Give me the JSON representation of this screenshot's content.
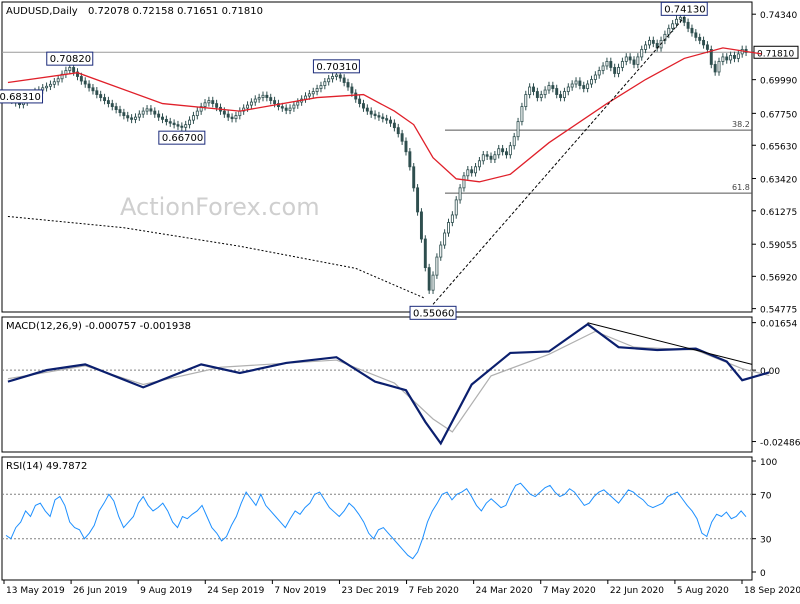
{
  "header": {
    "symbol": "AUDUSD,Daily",
    "ohlc": "0.72078 0.72158 0.71651 0.71810"
  },
  "watermark": "ActionForex.com",
  "colors": {
    "candle": "#2f4f4f",
    "sma": "#e0202a",
    "long_ma": "#000000",
    "macd": "#0b1f6e",
    "signal": "#b0b0b0",
    "rsi": "#1e90ff",
    "label_border": "#1a2a7a",
    "axis": "#000000",
    "grid": "#808080"
  },
  "chart_data": [
    {
      "type": "candlestick",
      "name": "price",
      "title": "AUDUSD,Daily",
      "y_ticks": [
        "0.74340",
        "0.71810",
        "0.69990",
        "0.67750",
        "0.65630",
        "0.63420",
        "0.61275",
        "0.59055",
        "0.56920",
        "0.54775"
      ],
      "y_tick_values": [
        0.7434,
        0.7181,
        0.6999,
        0.6775,
        0.6563,
        0.6342,
        0.61275,
        0.59055,
        0.5692,
        0.54775
      ],
      "x_ticks": [
        "13 May 2019",
        "26 Jun 2019",
        "9 Aug 2019",
        "24 Sep 2019",
        "7 Nov 2019",
        "23 Dec 2019",
        "7 Feb 2020",
        "24 Mar 2020",
        "7 May 2020",
        "22 Jun 2020",
        "5 Aug 2020",
        "18 Sep 2020"
      ],
      "ylim": [
        0.5455,
        0.7515
      ],
      "current_price": 0.7181,
      "current_price_label": "0.71810",
      "annotations": [
        {
          "label": "0.68310",
          "value": 0.6831,
          "index": 3
        },
        {
          "label": "0.70820",
          "value": 0.7082,
          "index": 16
        },
        {
          "label": "0.66700",
          "value": 0.667,
          "index": 45
        },
        {
          "label": "0.70310",
          "value": 0.7031,
          "index": 85
        },
        {
          "label": "0.55060",
          "value": 0.5506,
          "index": 110
        },
        {
          "label": "0.74130",
          "value": 0.7413,
          "index": 175
        }
      ],
      "fib_levels": [
        {
          "label": "38.2",
          "value": 0.6664
        },
        {
          "label": "61.8",
          "value": 0.6245
        }
      ],
      "trendline": {
        "from_index": 110,
        "from_value": 0.5506,
        "to_index": 175,
        "to_value": 0.7413
      },
      "long_ma_points": [
        {
          "index": 0,
          "value": 0.609
        },
        {
          "index": 30,
          "value": 0.6015
        },
        {
          "index": 60,
          "value": 0.5892
        },
        {
          "index": 90,
          "value": 0.5745
        },
        {
          "index": 108,
          "value": 0.5545
        }
      ],
      "closes": [
        0.688,
        0.6862,
        0.6845,
        0.6833,
        0.685,
        0.6875,
        0.69,
        0.692,
        0.693,
        0.6945,
        0.6955,
        0.6968,
        0.6985,
        0.7005,
        0.7035,
        0.706,
        0.708,
        0.705,
        0.702,
        0.699,
        0.697,
        0.6945,
        0.6925,
        0.69,
        0.688,
        0.686,
        0.684,
        0.682,
        0.68,
        0.678,
        0.676,
        0.6745,
        0.6735,
        0.675,
        0.677,
        0.679,
        0.6805,
        0.679,
        0.677,
        0.675,
        0.6735,
        0.672,
        0.671,
        0.67,
        0.669,
        0.6682,
        0.67,
        0.673,
        0.676,
        0.679,
        0.682,
        0.6845,
        0.686,
        0.684,
        0.6815,
        0.679,
        0.677,
        0.675,
        0.674,
        0.676,
        0.679,
        0.681,
        0.683,
        0.685,
        0.687,
        0.688,
        0.6895,
        0.688,
        0.686,
        0.684,
        0.682,
        0.681,
        0.6795,
        0.681,
        0.683,
        0.685,
        0.687,
        0.689,
        0.6905,
        0.692,
        0.694,
        0.696,
        0.6985,
        0.7005,
        0.702,
        0.703,
        0.701,
        0.698,
        0.695,
        0.691,
        0.687,
        0.684,
        0.681,
        0.679,
        0.677,
        0.676,
        0.675,
        0.674,
        0.673,
        0.671,
        0.668,
        0.664,
        0.659,
        0.652,
        0.642,
        0.628,
        0.612,
        0.594,
        0.575,
        0.56,
        0.57,
        0.582,
        0.59,
        0.598,
        0.605,
        0.61,
        0.62,
        0.628,
        0.636,
        0.64,
        0.638,
        0.642,
        0.646,
        0.65,
        0.649,
        0.647,
        0.65,
        0.654,
        0.652,
        0.65,
        0.656,
        0.662,
        0.672,
        0.682,
        0.69,
        0.695,
        0.692,
        0.688,
        0.69,
        0.693,
        0.696,
        0.694,
        0.69,
        0.688,
        0.692,
        0.695,
        0.697,
        0.699,
        0.696,
        0.694,
        0.697,
        0.7,
        0.703,
        0.706,
        0.709,
        0.712,
        0.708,
        0.704,
        0.708,
        0.712,
        0.715,
        0.713,
        0.71,
        0.715,
        0.72,
        0.723,
        0.726,
        0.724,
        0.721,
        0.726,
        0.73,
        0.734,
        0.737,
        0.74,
        0.7413,
        0.738,
        0.734,
        0.731,
        0.728,
        0.726,
        0.723,
        0.72,
        0.71,
        0.705,
        0.712,
        0.715,
        0.713,
        0.716,
        0.714,
        0.717,
        0.72,
        0.7181
      ],
      "sma": [
        {
          "index": 0,
          "value": 0.698
        },
        {
          "index": 18,
          "value": 0.7045
        },
        {
          "index": 40,
          "value": 0.684
        },
        {
          "index": 60,
          "value": 0.679
        },
        {
          "index": 80,
          "value": 0.688
        },
        {
          "index": 92,
          "value": 0.69
        },
        {
          "index": 100,
          "value": 0.679
        },
        {
          "index": 105,
          "value": 0.67
        },
        {
          "index": 110,
          "value": 0.648
        },
        {
          "index": 116,
          "value": 0.634
        },
        {
          "index": 122,
          "value": 0.632
        },
        {
          "index": 130,
          "value": 0.637
        },
        {
          "index": 140,
          "value": 0.658
        },
        {
          "index": 155,
          "value": 0.684
        },
        {
          "index": 165,
          "value": 0.7
        },
        {
          "index": 175,
          "value": 0.714
        },
        {
          "index": 185,
          "value": 0.721
        },
        {
          "index": 195,
          "value": 0.717
        }
      ]
    },
    {
      "type": "line",
      "name": "macd",
      "title": "MACD(12,26,9) -0.000757 -0.001938",
      "y_ticks": [
        "0.01654",
        "0.00",
        "-0.02486"
      ],
      "y_tick_values": [
        0.01654,
        0.0,
        -0.02486
      ],
      "ylim": [
        -0.0285,
        0.0185
      ],
      "macd_points": [
        {
          "index": 0,
          "value": -0.004
        },
        {
          "index": 10,
          "value": 0.0
        },
        {
          "index": 20,
          "value": 0.002
        },
        {
          "index": 35,
          "value": -0.006
        },
        {
          "index": 50,
          "value": 0.002
        },
        {
          "index": 60,
          "value": -0.001
        },
        {
          "index": 72,
          "value": 0.0025
        },
        {
          "index": 85,
          "value": 0.0045
        },
        {
          "index": 95,
          "value": -0.004
        },
        {
          "index": 103,
          "value": -0.007
        },
        {
          "index": 108,
          "value": -0.018
        },
        {
          "index": 112,
          "value": -0.0255
        },
        {
          "index": 120,
          "value": -0.005
        },
        {
          "index": 130,
          "value": 0.006
        },
        {
          "index": 140,
          "value": 0.0065
        },
        {
          "index": 150,
          "value": 0.016
        },
        {
          "index": 158,
          "value": 0.008
        },
        {
          "index": 168,
          "value": 0.007
        },
        {
          "index": 178,
          "value": 0.0075
        },
        {
          "index": 186,
          "value": 0.003
        },
        {
          "index": 190,
          "value": -0.0035
        },
        {
          "index": 197,
          "value": -0.0008
        }
      ],
      "signal_points": [
        {
          "index": 0,
          "value": -0.003
        },
        {
          "index": 20,
          "value": 0.0015
        },
        {
          "index": 35,
          "value": -0.005
        },
        {
          "index": 55,
          "value": 0.001
        },
        {
          "index": 85,
          "value": 0.0035
        },
        {
          "index": 100,
          "value": -0.0045
        },
        {
          "index": 110,
          "value": -0.017
        },
        {
          "index": 115,
          "value": -0.0215
        },
        {
          "index": 125,
          "value": -0.002
        },
        {
          "index": 140,
          "value": 0.0055
        },
        {
          "index": 152,
          "value": 0.0135
        },
        {
          "index": 162,
          "value": 0.008
        },
        {
          "index": 178,
          "value": 0.007
        },
        {
          "index": 190,
          "value": 0.0005
        },
        {
          "index": 197,
          "value": -0.0019
        }
      ],
      "trendline": {
        "from_index": 150,
        "from_value": 0.0165,
        "to_index": 199,
        "to_value": 0.002
      }
    },
    {
      "type": "line",
      "name": "rsi",
      "title": "RSI(14) 49.7872",
      "y_ticks": [
        "100",
        "70",
        "30",
        "0"
      ],
      "y_tick_values": [
        100,
        70,
        30,
        0
      ],
      "ylim": [
        0,
        100
      ],
      "values": [
        33,
        30,
        40,
        45,
        55,
        50,
        60,
        62,
        55,
        50,
        65,
        68,
        60,
        45,
        40,
        38,
        30,
        35,
        42,
        55,
        62,
        70,
        64,
        50,
        40,
        45,
        50,
        62,
        68,
        60,
        55,
        58,
        62,
        55,
        45,
        40,
        50,
        48,
        52,
        55,
        60,
        50,
        40,
        35,
        28,
        32,
        42,
        50,
        62,
        72,
        66,
        60,
        70,
        60,
        55,
        50,
        45,
        40,
        48,
        55,
        52,
        58,
        62,
        70,
        72,
        65,
        58,
        54,
        50,
        55,
        62,
        58,
        52,
        45,
        35,
        30,
        38,
        40,
        35,
        30,
        25,
        20,
        15,
        12,
        18,
        30,
        45,
        55,
        62,
        70,
        72,
        65,
        70,
        72,
        75,
        68,
        60,
        55,
        62,
        66,
        62,
        58,
        60,
        70,
        78,
        80,
        75,
        70,
        68,
        72,
        76,
        78,
        72,
        68,
        70,
        75,
        72,
        66,
        60,
        62,
        68,
        72,
        74,
        70,
        66,
        62,
        68,
        74,
        72,
        68,
        65,
        60,
        58,
        60,
        62,
        68,
        70,
        72,
        66,
        60,
        55,
        48,
        35,
        32,
        45,
        52,
        50,
        54,
        48,
        50,
        55,
        49.8
      ]
    }
  ]
}
